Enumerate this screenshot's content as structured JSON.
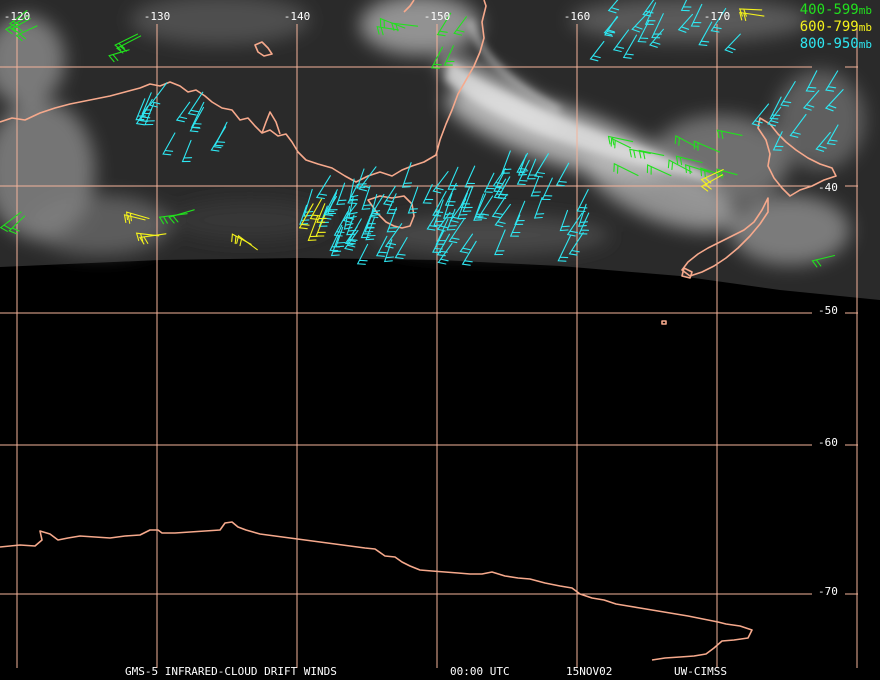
{
  "colors": {
    "grid": "#f4b39a",
    "coast": "#f6a98c",
    "level_400_599": "#22e01e",
    "level_600_799": "#f4f21c",
    "level_800_950": "#2ee7f2",
    "text": "#ffffff"
  },
  "longitude_labels": [
    "-120",
    "-130",
    "-140",
    "-150",
    "-160",
    "-170"
  ],
  "latitude_labels": [
    "-40",
    "-50",
    "-60",
    "-70"
  ],
  "legend": {
    "items": [
      {
        "range": "400-599",
        "unit": "mb",
        "color_key": "level_400_599"
      },
      {
        "range": "600-799",
        "unit": "mb",
        "color_key": "level_600_799"
      },
      {
        "range": "800-950",
        "unit": "mb",
        "color_key": "level_800_950"
      }
    ]
  },
  "footer": {
    "product": "GMS-5 INFRARED-CLOUD DRIFT WINDS",
    "time": "00:00 UTC",
    "date": "15NOV02",
    "source": "UW-CIMSS"
  }
}
